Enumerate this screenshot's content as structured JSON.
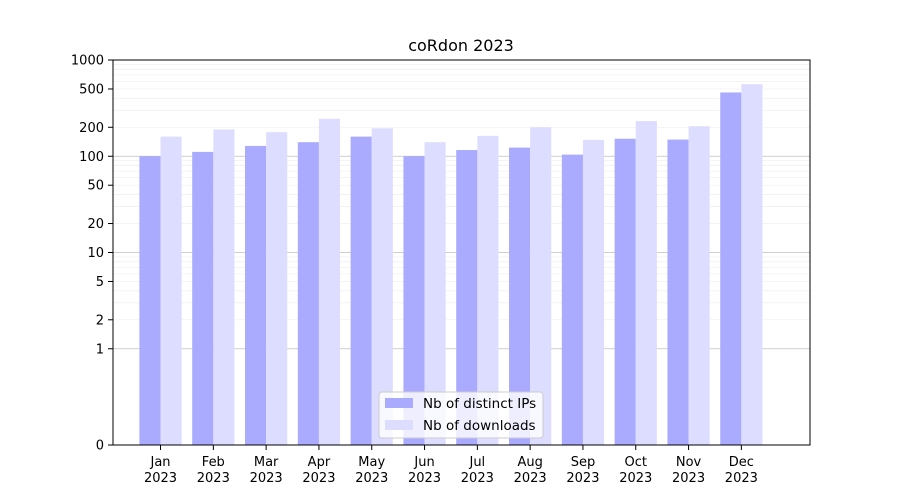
{
  "chart_data": {
    "type": "bar",
    "title": "coRdon 2023",
    "xlabel": "",
    "ylabel": "",
    "yscale": "symlog",
    "ylim": [
      0,
      1000
    ],
    "yticks": [
      0,
      1,
      2,
      5,
      10,
      20,
      50,
      100,
      200,
      500,
      1000
    ],
    "categories": [
      [
        "Jan",
        "2023"
      ],
      [
        "Feb",
        "2023"
      ],
      [
        "Mar",
        "2023"
      ],
      [
        "Apr",
        "2023"
      ],
      [
        "May",
        "2023"
      ],
      [
        "Jun",
        "2023"
      ],
      [
        "Jul",
        "2023"
      ],
      [
        "Aug",
        "2023"
      ],
      [
        "Sep",
        "2023"
      ],
      [
        "Oct",
        "2023"
      ],
      [
        "Nov",
        "2023"
      ],
      [
        "Dec",
        "2023"
      ]
    ],
    "series": [
      {
        "name": "Nb of distinct IPs",
        "color": "#aaaaff",
        "values": [
          100,
          111,
          128,
          140,
          160,
          100,
          116,
          123,
          104,
          152,
          149,
          460
        ]
      },
      {
        "name": "Nb of downloads",
        "color": "#ddddff",
        "values": [
          160,
          190,
          178,
          245,
          195,
          140,
          163,
          200,
          148,
          232,
          205,
          560
        ]
      }
    ],
    "grid": true,
    "legend_position": "lower center"
  }
}
